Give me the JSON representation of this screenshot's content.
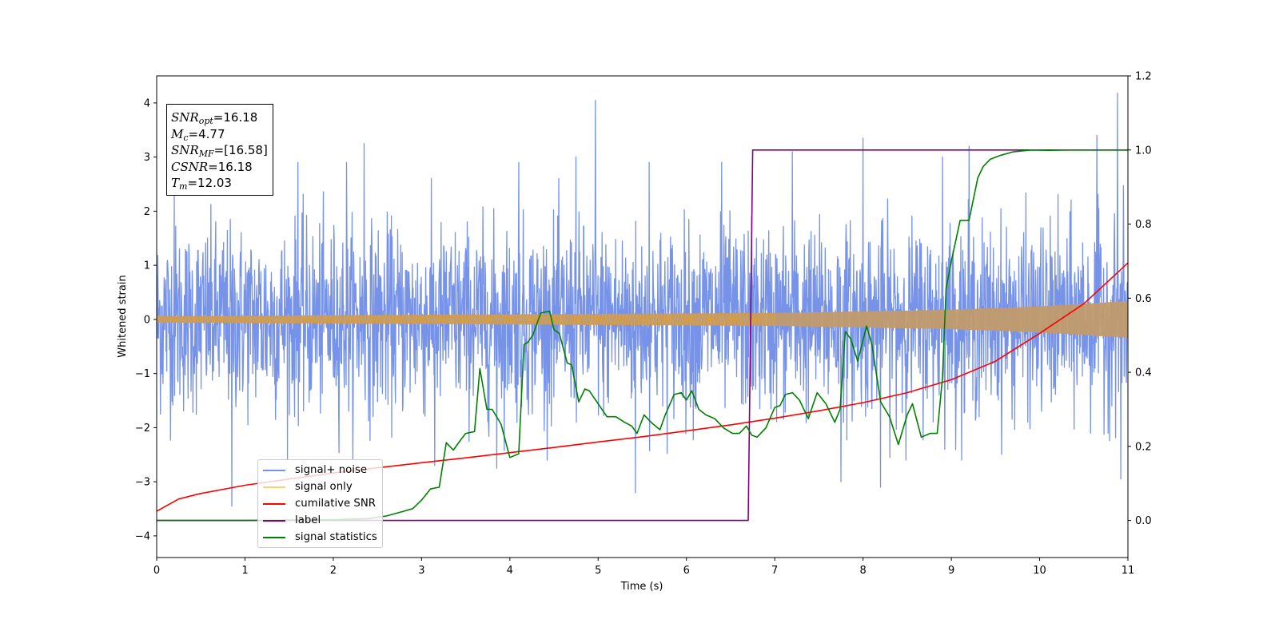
{
  "chart_data": {
    "type": "line",
    "xlabel": "Time (s)",
    "ylabel": "Whitened strain",
    "y2label": "",
    "xlim": [
      0,
      11
    ],
    "ylim": [
      -4.4,
      4.5
    ],
    "y2lim": [
      -0.1,
      1.2
    ],
    "x_ticks": [
      "0",
      "1",
      "2",
      "3",
      "4",
      "5",
      "6",
      "7",
      "8",
      "9",
      "10",
      "11"
    ],
    "y_ticks": [
      "4",
      "3",
      "2",
      "1",
      "0",
      "−1",
      "−2",
      "−3",
      "−4"
    ],
    "y2_ticks": [
      "1.2",
      "1.0",
      "0.8",
      "0.6",
      "0.4",
      "0.2",
      "0.0"
    ],
    "grid": false,
    "legend_position": "lower-left",
    "legend": [
      {
        "label": "signal+ noise",
        "color": "#4169e1"
      },
      {
        "label": "signal only",
        "color": "#ffa500"
      },
      {
        "label": "cumilative SNR",
        "color": "#ff0000"
      },
      {
        "label": "label",
        "color": "#800080"
      },
      {
        "label": "signal statistics",
        "color": "#008000"
      }
    ],
    "annotations": {
      "snr_opt": {
        "symbol": "SNR",
        "sub": "opt",
        "value": "=16.18"
      },
      "mc": {
        "symbol": "M",
        "sub": "c",
        "value": "=4.77"
      },
      "snr_mf": {
        "symbol": "SNR",
        "sub": "MF",
        "value": "=[16.58]"
      },
      "csnr": {
        "symbol": "CSNR",
        "value": "=16.18"
      },
      "tm": {
        "symbol": "T",
        "sub": "m",
        "value": "=12.03"
      }
    },
    "series": [
      {
        "name": "signal+ noise",
        "axis": "left",
        "color": "#4169e1",
        "description_values": {
          "noise_std": 0.85,
          "peak_min": -3.45,
          "peak_max": 4.18
        },
        "spikes": [
          [
            0.2,
            2.3
          ],
          [
            0.85,
            -3.45
          ],
          [
            1.6,
            2.9
          ],
          [
            2.15,
            2.9
          ],
          [
            2.35,
            3.25
          ],
          [
            3.15,
            -2.7
          ],
          [
            3.85,
            -2.75
          ],
          [
            4.1,
            2.9
          ],
          [
            4.75,
            3.0
          ],
          [
            4.97,
            4.05
          ],
          [
            5.42,
            -3.2
          ],
          [
            5.58,
            2.9
          ],
          [
            6.4,
            2.9
          ],
          [
            7.2,
            3.1
          ],
          [
            7.75,
            -3.0
          ],
          [
            8.0,
            3.35
          ],
          [
            8.2,
            -3.1
          ],
          [
            8.9,
            3.0
          ],
          [
            9.2,
            3.2
          ],
          [
            10.65,
            3.4
          ],
          [
            10.88,
            4.18
          ],
          [
            10.92,
            -2.95
          ]
        ]
      },
      {
        "name": "signal only",
        "axis": "left",
        "color": "#ffa500",
        "envelope": [
          [
            0,
            0.06
          ],
          [
            7,
            0.12
          ],
          [
            9,
            0.18
          ],
          [
            10,
            0.24
          ],
          [
            10.5,
            0.29
          ],
          [
            11,
            0.34
          ]
        ]
      },
      {
        "name": "cumilative SNR",
        "axis": "right",
        "color": "#ff0000",
        "x": [
          0,
          0.25,
          0.5,
          1,
          1.5,
          2,
          2.5,
          3,
          3.5,
          4,
          4.5,
          5,
          5.5,
          6,
          6.5,
          7,
          7.5,
          8,
          8.5,
          9,
          9.5,
          10,
          10.5,
          11
        ],
        "values": [
          0.025,
          0.058,
          0.073,
          0.095,
          0.112,
          0.128,
          0.142,
          0.156,
          0.169,
          0.183,
          0.197,
          0.212,
          0.226,
          0.242,
          0.258,
          0.276,
          0.296,
          0.318,
          0.345,
          0.38,
          0.43,
          0.505,
          0.585,
          0.695
        ]
      },
      {
        "name": "label",
        "axis": "right",
        "color": "#800080",
        "x": [
          0,
          6.7,
          6.75,
          11
        ],
        "values": [
          0.0,
          0.0,
          1.0,
          1.0
        ]
      },
      {
        "name": "signal statistics",
        "axis": "right",
        "color": "#008000",
        "x": [
          0,
          1,
          2,
          2.4,
          2.6,
          2.8,
          2.9,
          3.0,
          3.1,
          3.2,
          3.28,
          3.36,
          3.45,
          3.5,
          3.6,
          3.66,
          3.74,
          3.8,
          3.9,
          4.0,
          4.1,
          4.16,
          4.2,
          4.26,
          4.35,
          4.45,
          4.5,
          4.56,
          4.65,
          4.7,
          4.78,
          4.85,
          4.9,
          5.0,
          5.1,
          5.2,
          5.3,
          5.38,
          5.44,
          5.52,
          5.6,
          5.7,
          5.76,
          5.86,
          5.94,
          6.0,
          6.06,
          6.14,
          6.22,
          6.32,
          6.42,
          6.52,
          6.6,
          6.68,
          6.74,
          6.8,
          6.9,
          7.0,
          7.06,
          7.12,
          7.2,
          7.28,
          7.38,
          7.48,
          7.58,
          7.68,
          7.74,
          7.8,
          7.86,
          7.94,
          8.04,
          8.1,
          8.2,
          8.3,
          8.4,
          8.5,
          8.56,
          8.66,
          8.76,
          8.84,
          8.9,
          8.94,
          9.0,
          9.1,
          9.2,
          9.3,
          9.36,
          9.44,
          9.55,
          9.7,
          9.9,
          10.1,
          10.3,
          10.6,
          10.8,
          11
        ],
        "values": [
          0.0,
          0.0,
          0.002,
          0.005,
          0.012,
          0.025,
          0.032,
          0.055,
          0.085,
          0.09,
          0.21,
          0.19,
          0.22,
          0.235,
          0.24,
          0.41,
          0.3,
          0.3,
          0.26,
          0.17,
          0.18,
          0.475,
          0.48,
          0.5,
          0.56,
          0.565,
          0.515,
          0.505,
          0.425,
          0.42,
          0.32,
          0.355,
          0.35,
          0.315,
          0.28,
          0.28,
          0.265,
          0.255,
          0.235,
          0.285,
          0.265,
          0.245,
          0.285,
          0.34,
          0.345,
          0.325,
          0.35,
          0.3,
          0.285,
          0.275,
          0.25,
          0.235,
          0.235,
          0.255,
          0.23,
          0.225,
          0.25,
          0.305,
          0.31,
          0.34,
          0.345,
          0.325,
          0.275,
          0.345,
          0.315,
          0.265,
          0.3,
          0.51,
          0.49,
          0.43,
          0.525,
          0.475,
          0.32,
          0.28,
          0.205,
          0.285,
          0.315,
          0.225,
          0.235,
          0.235,
          0.385,
          0.625,
          0.7,
          0.81,
          0.81,
          0.925,
          0.955,
          0.975,
          0.985,
          0.995,
          1.0,
          0.999,
          1.0,
          1.0,
          1.0,
          1.0
        ]
      }
    ]
  }
}
